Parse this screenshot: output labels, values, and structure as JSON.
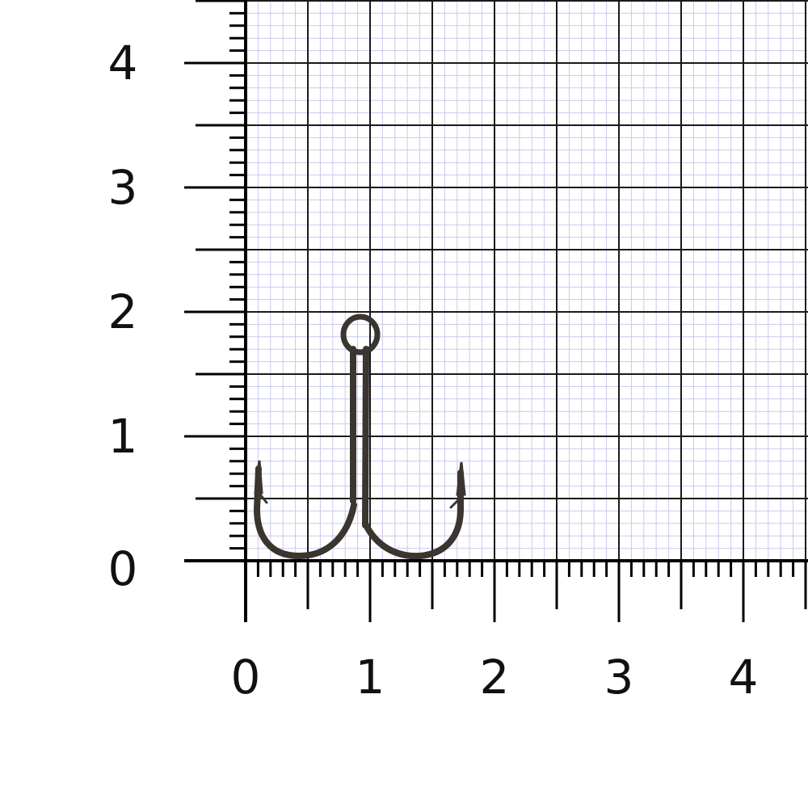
{
  "scale": {
    "x_ticks": [
      "0",
      "1",
      "2",
      "3",
      "4"
    ],
    "y_ticks": [
      "0",
      "1",
      "2",
      "3",
      "4"
    ],
    "minor_divisions_per_unit": 10
  },
  "subject": {
    "name": "treble hook",
    "color": "#3b3530"
  },
  "colors": {
    "major_grid": "#1a1a1a",
    "fine_grid": "#c9c9f0",
    "axis": "#000000"
  }
}
